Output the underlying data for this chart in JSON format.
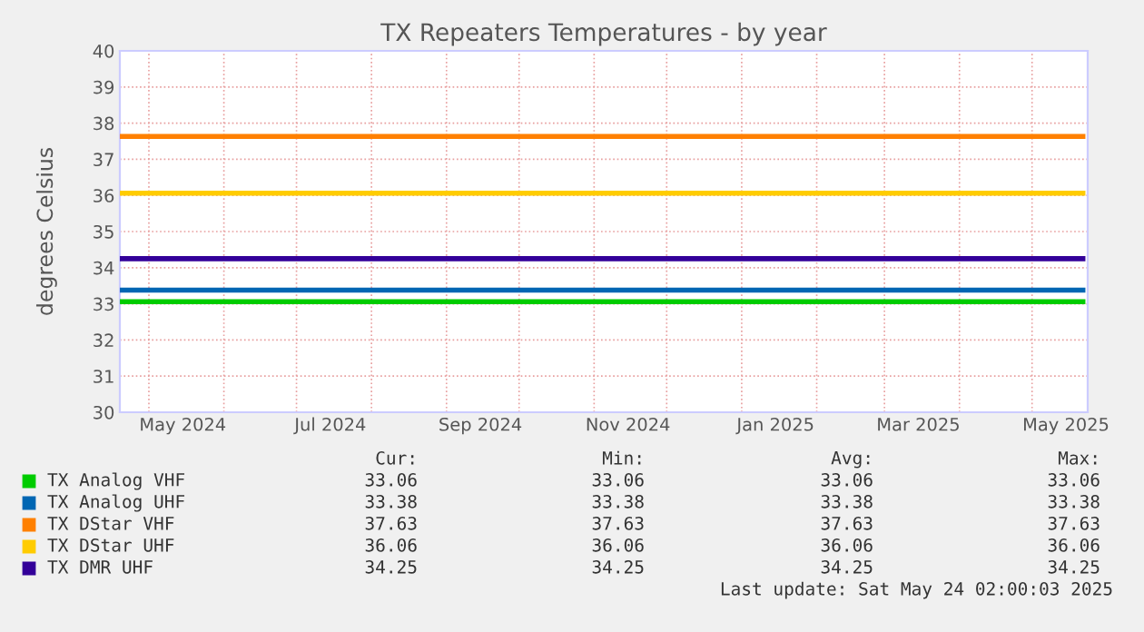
{
  "chart_data": {
    "type": "line",
    "title": "TX Repeaters Temperatures - by year",
    "ylabel": "degrees Celsius",
    "x": [
      "2024-04-19",
      "2025-05-22"
    ],
    "series": [
      {
        "name": "TX Analog VHF",
        "color": "#00cc00",
        "values": [
          33.06,
          33.06
        ]
      },
      {
        "name": "TX Analog UHF",
        "color": "#0066b3",
        "values": [
          33.38,
          33.38
        ]
      },
      {
        "name": "TX DStar VHF",
        "color": "#ff8000",
        "values": [
          37.63,
          37.63
        ]
      },
      {
        "name": "TX DStar UHF",
        "color": "#ffcc00",
        "values": [
          36.06,
          36.06
        ]
      },
      {
        "name": "TX DMR UHF",
        "color": "#330099",
        "values": [
          34.25,
          34.25
        ]
      }
    ],
    "xlim": [
      "2024-04-19",
      "2025-05-24"
    ],
    "xticks": [
      {
        "value": "2024-05-01",
        "label": null
      },
      {
        "value": "2024-05-15",
        "label": "May 2024"
      },
      {
        "value": "2024-06-01",
        "label": null
      },
      {
        "value": "2024-07-01",
        "label": null
      },
      {
        "value": "2024-07-15",
        "label": "Jul 2024"
      },
      {
        "value": "2024-08-01",
        "label": null
      },
      {
        "value": "2024-09-01",
        "label": null
      },
      {
        "value": "2024-09-15",
        "label": "Sep 2024"
      },
      {
        "value": "2024-10-01",
        "label": null
      },
      {
        "value": "2024-11-01",
        "label": null
      },
      {
        "value": "2024-11-15",
        "label": "Nov 2024"
      },
      {
        "value": "2024-12-01",
        "label": null
      },
      {
        "value": "2025-01-01",
        "label": null
      },
      {
        "value": "2025-01-15",
        "label": "Jan 2025"
      },
      {
        "value": "2025-02-01",
        "label": null
      },
      {
        "value": "2025-03-01",
        "label": null
      },
      {
        "value": "2025-03-15",
        "label": "Mar 2025"
      },
      {
        "value": "2025-04-01",
        "label": null
      },
      {
        "value": "2025-05-01",
        "label": null
      },
      {
        "value": "2025-05-15",
        "label": "May 2025"
      }
    ],
    "ylim": [
      30,
      40
    ],
    "yticks": [
      30,
      31,
      32,
      33,
      34,
      35,
      36,
      37,
      38,
      39,
      40
    ],
    "grid": true,
    "legend": "bottom",
    "line_style": "solid",
    "marker": "none",
    "annotations": [
      "Cur:",
      "Min:",
      "Avg:",
      "Max:",
      "33.06",
      "33.06",
      "33.06",
      "33.06",
      "33.38",
      "33.38",
      "33.38",
      "33.38",
      "37.63",
      "37.63",
      "37.63",
      "37.63",
      "36.06",
      "36.06",
      "36.06",
      "36.06",
      "34.25",
      "34.25",
      "34.25",
      "34.25",
      "Last update: Sat May 24 02:00:03 2025"
    ]
  }
}
